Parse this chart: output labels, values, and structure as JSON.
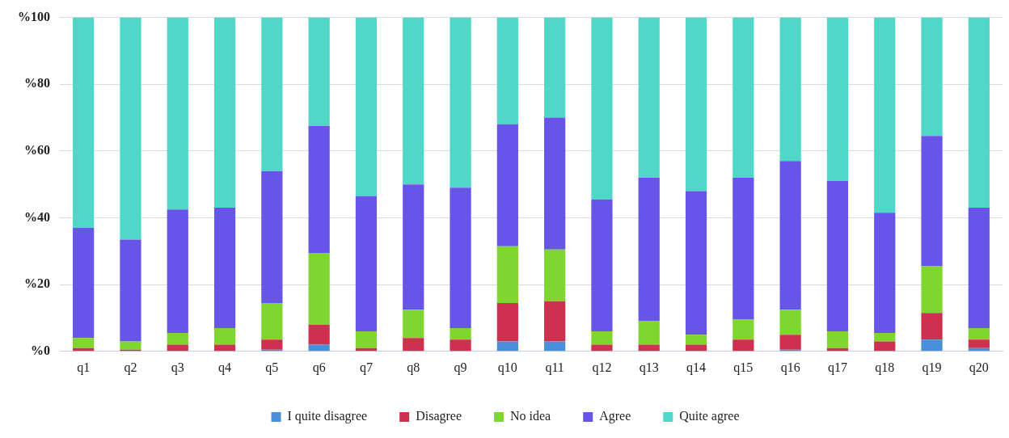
{
  "chart_data": {
    "type": "bar",
    "stacked": true,
    "categories": [
      "q1",
      "q2",
      "q3",
      "q4",
      "q5",
      "q6",
      "q7",
      "q8",
      "q9",
      "q10",
      "q11",
      "q12",
      "q13",
      "q14",
      "q15",
      "q16",
      "q17",
      "q18",
      "q19",
      "q20"
    ],
    "series": [
      {
        "name": "I quite disagree",
        "color": "#4a8fd9",
        "values": [
          0,
          0,
          0,
          0,
          0.5,
          2,
          0,
          0,
          0,
          3,
          3,
          0,
          0,
          0,
          0,
          0.5,
          0,
          0,
          3.5,
          1
        ]
      },
      {
        "name": "Disagree",
        "color": "#d0304f",
        "values": [
          1,
          0.5,
          2,
          2,
          3,
          6,
          1,
          4,
          3.5,
          11.5,
          12,
          2,
          2,
          2,
          3.5,
          4.5,
          1,
          3,
          8,
          2.5
        ]
      },
      {
        "name": "No idea",
        "color": "#7ed62f",
        "values": [
          3,
          2.5,
          3.5,
          5,
          11,
          21.5,
          5,
          8.5,
          3.5,
          17,
          15.5,
          4,
          7,
          3,
          6,
          7.5,
          5,
          2.5,
          14,
          3.5
        ]
      },
      {
        "name": "Agree",
        "color": "#6655e8",
        "values": [
          33,
          30.5,
          37,
          36,
          39.5,
          38,
          40.5,
          37.5,
          42,
          36.5,
          39.5,
          39.5,
          43,
          43,
          42.5,
          44.5,
          45,
          36,
          39,
          36
        ]
      },
      {
        "name": "Quite agree",
        "color": "#4fd8c8",
        "values": [
          63,
          66.5,
          57.5,
          57,
          46,
          32.5,
          53.5,
          50,
          51,
          32,
          30,
          54.5,
          48,
          52,
          48,
          43,
          49,
          58.5,
          35.5,
          57
        ]
      }
    ],
    "ylim": [
      0,
      100
    ],
    "yticks": [
      {
        "value": 0,
        "label": "%0"
      },
      {
        "value": 20,
        "label": "%20"
      },
      {
        "value": 40,
        "label": "%40"
      },
      {
        "value": 60,
        "label": "%60"
      },
      {
        "value": 80,
        "label": "%80"
      },
      {
        "value": 100,
        "label": "%100"
      }
    ],
    "grid": "y",
    "legend": "bottom"
  }
}
